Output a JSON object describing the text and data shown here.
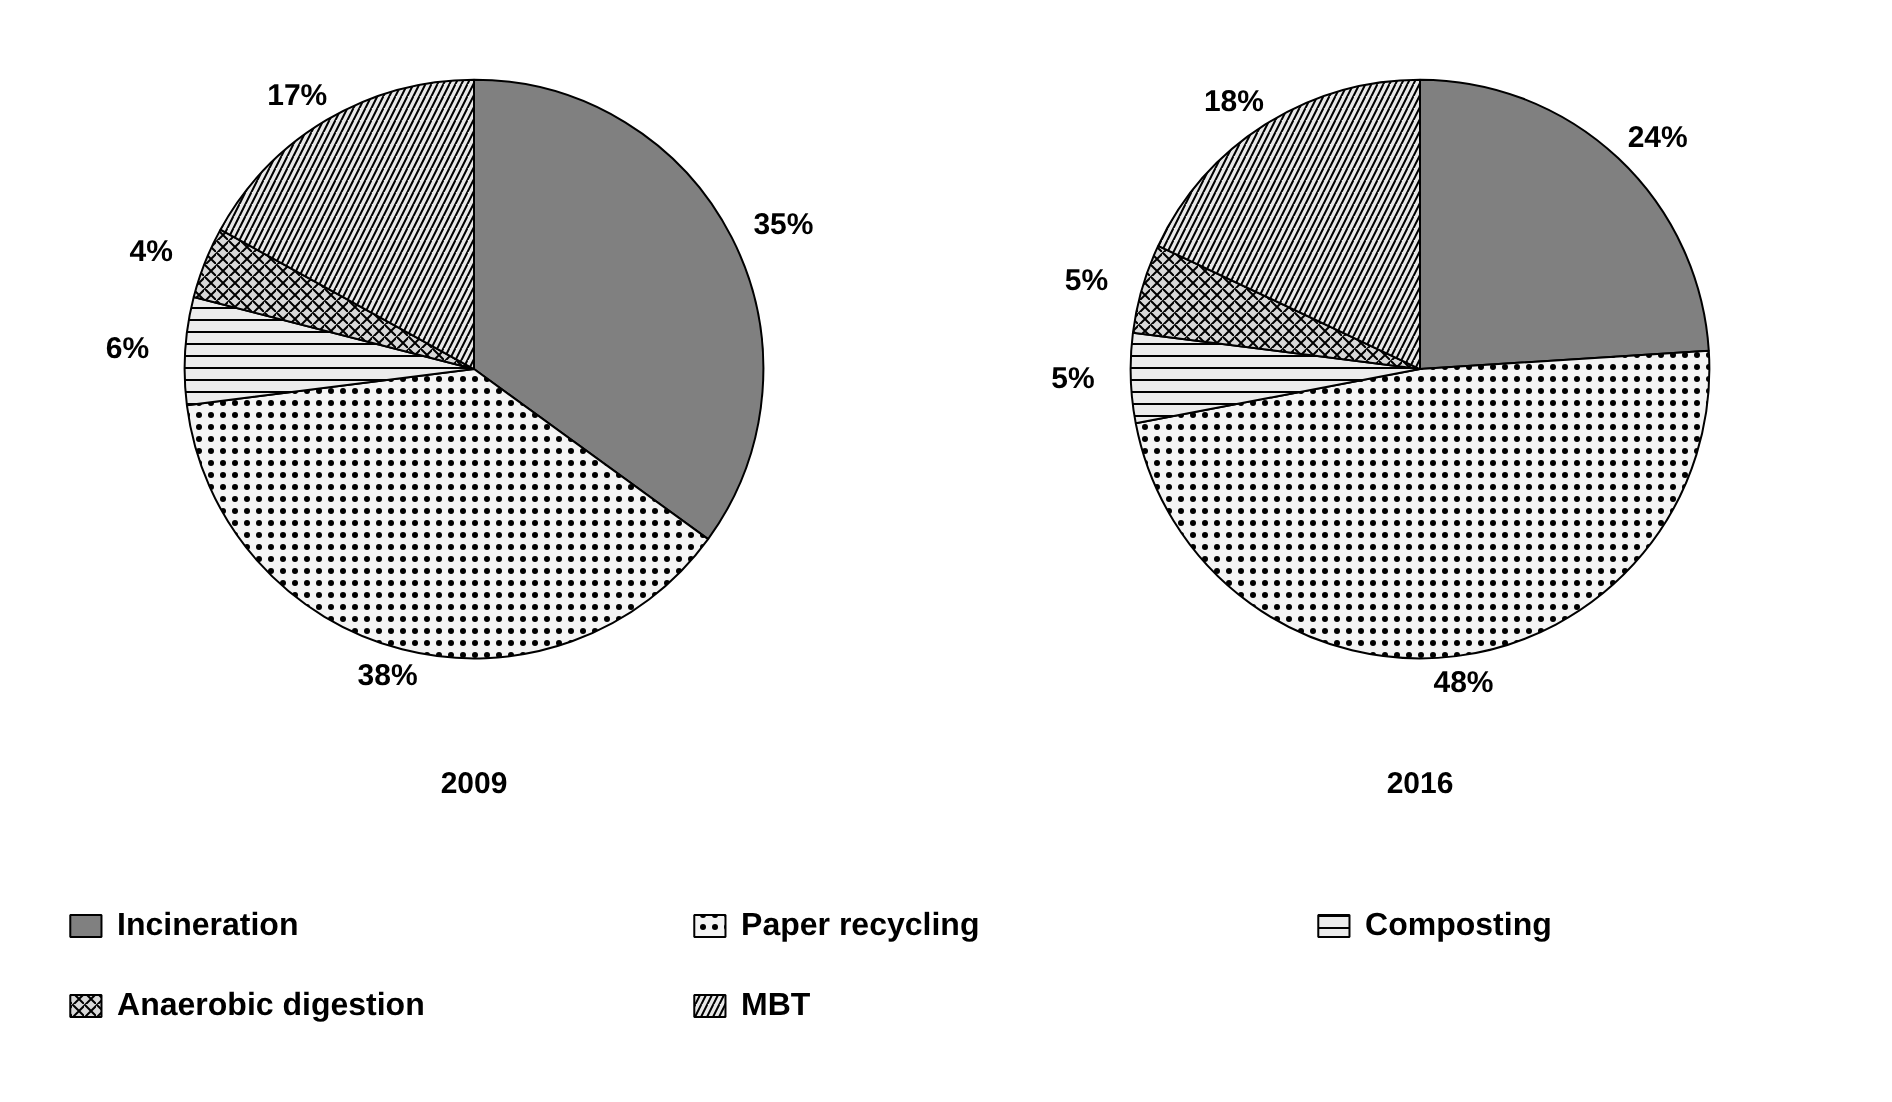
{
  "chart_data": [
    {
      "type": "pie",
      "title": "2009",
      "categories": [
        "Incineration",
        "Paper recycling",
        "Composting",
        "Anaerobic digestion",
        "MBT"
      ],
      "values": [
        35,
        38,
        6,
        4,
        17
      ],
      "value_labels": [
        "35%",
        "38%",
        "6%",
        "4%",
        "17%"
      ],
      "colors": [
        "#808080",
        "#f4f4f4",
        "#ececec",
        "#d8d8d8",
        "#e8e8e8"
      ],
      "legend": "bottom"
    },
    {
      "type": "pie",
      "title": "2016",
      "categories": [
        null,
        null,
        null,
        null,
        null
      ],
      "values": [
        24,
        48,
        5,
        5,
        18
      ],
      "value_labels": [
        "24%",
        "48%",
        "5%",
        "5%",
        "18%"
      ],
      "colors": [
        "#808080",
        "#f4f4f4",
        "#ececec",
        "#d8d8d8",
        "#e8e8e8"
      ]
    }
  ]
}
